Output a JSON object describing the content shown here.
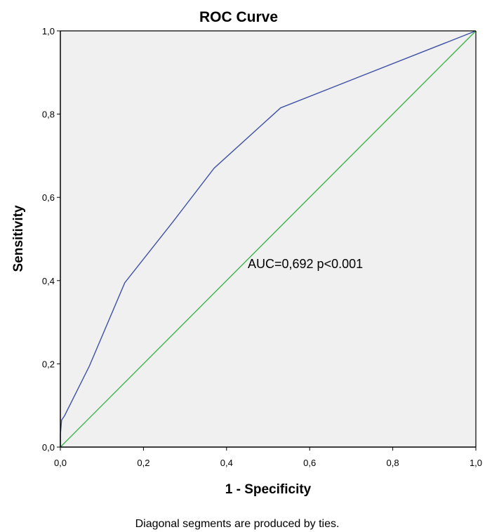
{
  "chart_data": {
    "type": "line",
    "title": "ROC Curve",
    "xlabel": "1 - Specificity",
    "ylabel": "Sensitivity",
    "xlim": [
      0,
      1
    ],
    "ylim": [
      0,
      1
    ],
    "x_ticks": [
      "0,0",
      "0,2",
      "0,4",
      "0,6",
      "0,8",
      "1,0"
    ],
    "y_ticks": [
      "0,0",
      "0,2",
      "0,4",
      "0,6",
      "0,8",
      "1,0"
    ],
    "grid": false,
    "plot_background": "#f0f0f0",
    "series": [
      {
        "color": "#3f52a6",
        "x": [
          0.0,
          0.0,
          0.003,
          0.01,
          0.07,
          0.155,
          0.27,
          0.37,
          0.53,
          1.0
        ],
        "y": [
          0.0,
          0.03,
          0.065,
          0.075,
          0.195,
          0.395,
          0.54,
          0.67,
          0.815,
          1.0
        ]
      },
      {
        "color": "#3cb44b",
        "x": [
          0.0,
          1.0
        ],
        "y": [
          0.0,
          1.0
        ]
      }
    ],
    "annotation": "AUC=0,692 p<0.001",
    "footnote": "Diagonal segments are produced by ties."
  }
}
